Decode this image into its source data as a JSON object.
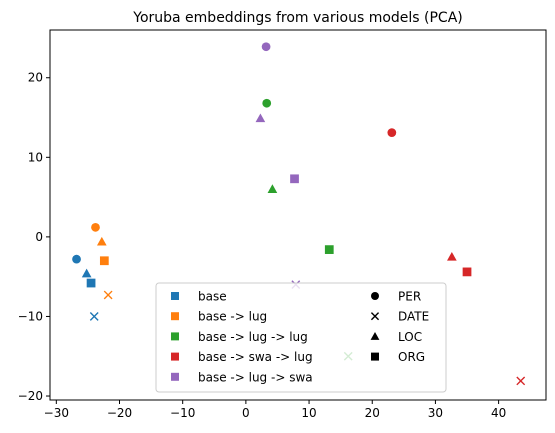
{
  "chart_data": {
    "type": "scatter",
    "title": "Yoruba embeddings from various models (PCA)",
    "xlabel": "",
    "ylabel": "",
    "xlim": [
      -31,
      47.5
    ],
    "ylim": [
      -20.5,
      26
    ],
    "xticks": [
      -30,
      -20,
      -10,
      0,
      10,
      20,
      30,
      40
    ],
    "yticks": [
      -20,
      -10,
      0,
      10,
      20
    ],
    "xtick_labels": [
      "−30",
      "−20",
      "−10",
      "0",
      "10",
      "20",
      "30",
      "40"
    ],
    "ytick_labels": [
      "−20",
      "−10",
      "0",
      "10",
      "20"
    ],
    "grid": false,
    "legend_position": "bottom-center",
    "models": [
      {
        "name": "base",
        "color": "#1f77b4"
      },
      {
        "name": "base -> lug",
        "color": "#ff7f0e"
      },
      {
        "name": "base -> lug -> lug",
        "color": "#2ca02c"
      },
      {
        "name": "base -> swa -> lug",
        "color": "#d62728"
      },
      {
        "name": "base -> lug -> swa",
        "color": "#9467bd"
      }
    ],
    "entity_types": [
      {
        "name": "PER",
        "marker": "circle"
      },
      {
        "name": "DATE",
        "marker": "x"
      },
      {
        "name": "LOC",
        "marker": "triangle"
      },
      {
        "name": "ORG",
        "marker": "square"
      }
    ],
    "points": [
      {
        "model": "base",
        "entity": "PER",
        "x": -26.8,
        "y": -2.8
      },
      {
        "model": "base",
        "entity": "DATE",
        "x": -24.0,
        "y": -10.0
      },
      {
        "model": "base",
        "entity": "LOC",
        "x": -25.2,
        "y": -4.6
      },
      {
        "model": "base",
        "entity": "ORG",
        "x": -24.5,
        "y": -5.8
      },
      {
        "model": "base -> lug",
        "entity": "PER",
        "x": -23.8,
        "y": 1.2
      },
      {
        "model": "base -> lug",
        "entity": "DATE",
        "x": -21.8,
        "y": -7.3
      },
      {
        "model": "base -> lug",
        "entity": "LOC",
        "x": -22.8,
        "y": -0.6
      },
      {
        "model": "base -> lug",
        "entity": "ORG",
        "x": -22.4,
        "y": -3.0
      },
      {
        "model": "base -> lug -> lug",
        "entity": "PER",
        "x": 3.3,
        "y": 16.8
      },
      {
        "model": "base -> lug -> lug",
        "entity": "DATE",
        "x": 16.2,
        "y": -15.0
      },
      {
        "model": "base -> lug -> lug",
        "entity": "LOC",
        "x": 4.2,
        "y": 6.0
      },
      {
        "model": "base -> lug -> lug",
        "entity": "ORG",
        "x": 13.2,
        "y": -1.6
      },
      {
        "model": "base -> swa -> lug",
        "entity": "PER",
        "x": 23.1,
        "y": 13.1
      },
      {
        "model": "base -> swa -> lug",
        "entity": "DATE",
        "x": 43.5,
        "y": -18.1
      },
      {
        "model": "base -> swa -> lug",
        "entity": "LOC",
        "x": 32.6,
        "y": -2.5
      },
      {
        "model": "base -> swa -> lug",
        "entity": "ORG",
        "x": 35.0,
        "y": -4.4
      },
      {
        "model": "base -> lug -> swa",
        "entity": "PER",
        "x": 3.2,
        "y": 23.9
      },
      {
        "model": "base -> lug -> swa",
        "entity": "DATE",
        "x": 7.9,
        "y": -6.0
      },
      {
        "model": "base -> lug -> swa",
        "entity": "LOC",
        "x": 2.3,
        "y": 14.9
      },
      {
        "model": "base -> lug -> swa",
        "entity": "ORG",
        "x": 7.7,
        "y": 7.3
      }
    ]
  }
}
